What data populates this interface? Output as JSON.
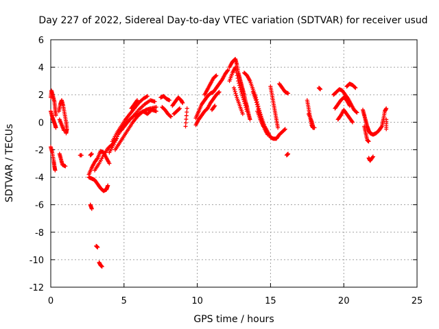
{
  "chart_data": {
    "type": "scatter",
    "title": "Day 227 of 2022, Sidereal Day-to-day VTEC variation (SDTVAR) for receiver usud",
    "xlabel": "GPS time / hours",
    "ylabel": "SDTVAR / TECUs",
    "xlim": [
      0,
      25
    ],
    "ylim": [
      -12,
      6
    ],
    "xticks": [
      0,
      5,
      10,
      15,
      20,
      25
    ],
    "yticks": [
      -12,
      -10,
      -8,
      -6,
      -4,
      -2,
      0,
      2,
      4,
      6
    ],
    "grid": true,
    "marker": "+",
    "series": [
      {
        "name": "SDTVAR",
        "color": "#ff0000",
        "segments": [
          [
            [
              0.0,
              1.8
            ],
            [
              0.05,
              2.3
            ],
            [
              0.15,
              1.9
            ],
            [
              0.25,
              1.5
            ],
            [
              0.3,
              1.0
            ],
            [
              0.35,
              0.5
            ]
          ],
          [
            [
              0.0,
              0.8
            ],
            [
              0.1,
              0.4
            ],
            [
              0.2,
              0.1
            ],
            [
              0.3,
              -0.2
            ],
            [
              0.35,
              -0.4
            ]
          ],
          [
            [
              0.0,
              -1.8
            ],
            [
              0.1,
              -2.2
            ],
            [
              0.2,
              -2.8
            ],
            [
              0.25,
              -3.2
            ],
            [
              0.3,
              -3.5
            ]
          ],
          [
            [
              0.55,
              0.8
            ],
            [
              0.65,
              1.3
            ],
            [
              0.75,
              1.6
            ],
            [
              0.85,
              1.2
            ],
            [
              0.95,
              0.6
            ],
            [
              1.05,
              0.0
            ],
            [
              1.1,
              -0.5
            ],
            [
              1.05,
              -0.8
            ]
          ],
          [
            [
              0.6,
              0.2
            ],
            [
              0.75,
              -0.2
            ],
            [
              0.9,
              -0.6
            ]
          ],
          [
            [
              0.6,
              -2.3
            ],
            [
              0.7,
              -2.7
            ],
            [
              0.8,
              -3.1
            ],
            [
              1.0,
              -3.2
            ]
          ],
          [
            [
              2.0,
              -2.4
            ],
            [
              2.1,
              -2.4
            ]
          ],
          [
            [
              2.6,
              -4.0
            ],
            [
              2.8,
              -4.1
            ],
            [
              3.0,
              -4.2
            ],
            [
              3.2,
              -4.5
            ],
            [
              3.4,
              -4.8
            ],
            [
              3.6,
              -5.0
            ],
            [
              3.8,
              -4.9
            ],
            [
              3.9,
              -4.6
            ]
          ],
          [
            [
              2.6,
              -3.8
            ],
            [
              2.8,
              -3.3
            ],
            [
              3.0,
              -2.9
            ],
            [
              3.2,
              -2.6
            ],
            [
              3.4,
              -2.1
            ],
            [
              3.6,
              -2.2
            ],
            [
              3.8,
              -2.6
            ],
            [
              4.0,
              -3.0
            ]
          ],
          [
            [
              2.7,
              -2.4
            ],
            [
              2.8,
              -2.3
            ]
          ],
          [
            [
              3.0,
              -3.5
            ],
            [
              3.3,
              -3.0
            ],
            [
              3.6,
              -2.4
            ],
            [
              3.9,
              -1.9
            ],
            [
              4.2,
              -1.6
            ],
            [
              4.5,
              -1.2
            ]
          ],
          [
            [
              2.7,
              -6.0
            ],
            [
              2.8,
              -6.3
            ]
          ],
          [
            [
              3.1,
              -9.0
            ],
            [
              3.2,
              -9.1
            ]
          ],
          [
            [
              3.3,
              -10.2
            ],
            [
              3.4,
              -10.4
            ],
            [
              3.5,
              -10.5
            ]
          ],
          [
            [
              4.0,
              -2.2
            ],
            [
              4.3,
              -1.6
            ],
            [
              4.6,
              -0.9
            ],
            [
              4.9,
              -0.4
            ],
            [
              5.2,
              0.0
            ],
            [
              5.6,
              0.4
            ],
            [
              6.0,
              0.9
            ],
            [
              6.4,
              1.3
            ],
            [
              6.8,
              1.6
            ],
            [
              7.1,
              1.5
            ]
          ],
          [
            [
              4.2,
              -1.4
            ],
            [
              4.5,
              -0.8
            ],
            [
              4.8,
              -0.3
            ],
            [
              5.1,
              0.2
            ],
            [
              5.4,
              0.6
            ],
            [
              5.7,
              1.0
            ],
            [
              6.0,
              1.4
            ],
            [
              6.3,
              1.7
            ],
            [
              6.6,
              1.9
            ]
          ],
          [
            [
              4.4,
              -2.0
            ],
            [
              4.7,
              -1.5
            ],
            [
              5.0,
              -1.0
            ],
            [
              5.3,
              -0.5
            ],
            [
              5.6,
              0.0
            ],
            [
              5.9,
              0.4
            ],
            [
              6.2,
              0.7
            ],
            [
              6.5,
              0.9
            ],
            [
              6.8,
              1.0
            ],
            [
              7.2,
              1.1
            ]
          ],
          [
            [
              4.8,
              -0.6
            ],
            [
              5.1,
              -0.2
            ],
            [
              5.4,
              0.2
            ],
            [
              5.7,
              0.5
            ],
            [
              6.0,
              0.6
            ],
            [
              6.3,
              0.8
            ],
            [
              6.6,
              0.6
            ],
            [
              6.9,
              0.9
            ],
            [
              7.2,
              0.8
            ]
          ],
          [
            [
              5.5,
              1.0
            ],
            [
              5.7,
              1.3
            ],
            [
              5.9,
              1.6
            ]
          ],
          [
            [
              7.5,
              1.8
            ],
            [
              7.7,
              1.9
            ],
            [
              7.9,
              1.7
            ],
            [
              8.1,
              1.6
            ]
          ],
          [
            [
              7.6,
              1.1
            ],
            [
              7.8,
              0.9
            ],
            [
              8.0,
              0.6
            ],
            [
              8.2,
              0.4
            ]
          ],
          [
            [
              8.3,
              1.2
            ],
            [
              8.5,
              1.5
            ],
            [
              8.7,
              1.8
            ],
            [
              8.9,
              1.6
            ],
            [
              9.0,
              1.4
            ]
          ],
          [
            [
              8.4,
              0.6
            ],
            [
              8.6,
              0.8
            ],
            [
              8.8,
              1.0
            ]
          ],
          [
            [
              9.2,
              -0.3
            ],
            [
              9.3,
              1.0
            ]
          ],
          [
            [
              9.9,
              0.3
            ],
            [
              10.1,
              0.8
            ],
            [
              10.3,
              1.3
            ],
            [
              10.5,
              1.6
            ],
            [
              10.7,
              1.9
            ],
            [
              10.9,
              2.1
            ],
            [
              11.1,
              2.2
            ],
            [
              11.3,
              2.5
            ],
            [
              11.5,
              2.8
            ],
            [
              11.7,
              3.1
            ],
            [
              11.9,
              3.5
            ],
            [
              12.1,
              3.8
            ]
          ],
          [
            [
              9.9,
              -0.2
            ],
            [
              10.1,
              0.2
            ],
            [
              10.3,
              0.5
            ],
            [
              10.5,
              0.8
            ],
            [
              10.7,
              1.0
            ],
            [
              10.9,
              1.4
            ],
            [
              11.1,
              1.7
            ],
            [
              11.3,
              2.0
            ],
            [
              11.5,
              2.2
            ]
          ],
          [
            [
              10.5,
              2.0
            ],
            [
              10.7,
              2.4
            ],
            [
              10.9,
              2.8
            ],
            [
              11.1,
              3.2
            ],
            [
              11.3,
              3.4
            ]
          ],
          [
            [
              11.0,
              0.9
            ],
            [
              11.2,
              1.2
            ]
          ],
          [
            [
              12.2,
              4.0
            ],
            [
              12.4,
              4.4
            ],
            [
              12.6,
              4.6
            ],
            [
              12.7,
              4.2
            ],
            [
              12.8,
              3.6
            ],
            [
              12.9,
              3.2
            ],
            [
              13.0,
              2.8
            ],
            [
              13.1,
              2.4
            ],
            [
              13.2,
              2.0
            ],
            [
              13.3,
              1.5
            ],
            [
              13.4,
              1.1
            ],
            [
              13.5,
              0.6
            ],
            [
              13.6,
              0.2
            ]
          ],
          [
            [
              12.2,
              3.0
            ],
            [
              12.4,
              3.6
            ],
            [
              12.6,
              4.0
            ],
            [
              12.8,
              3.0
            ],
            [
              13.0,
              2.2
            ],
            [
              13.2,
              1.5
            ],
            [
              13.4,
              0.8
            ]
          ],
          [
            [
              12.5,
              2.5
            ],
            [
              12.7,
              1.8
            ],
            [
              12.9,
              1.2
            ],
            [
              13.1,
              0.6
            ]
          ],
          [
            [
              13.2,
              3.6
            ],
            [
              13.4,
              3.4
            ],
            [
              13.6,
              3.0
            ],
            [
              13.8,
              2.4
            ],
            [
              14.0,
              1.8
            ],
            [
              14.2,
              1.0
            ],
            [
              14.4,
              0.3
            ],
            [
              14.6,
              -0.3
            ],
            [
              14.8,
              -0.7
            ],
            [
              15.0,
              -1.1
            ],
            [
              15.2,
              -1.2
            ],
            [
              15.4,
              -1.2
            ],
            [
              15.6,
              -0.9
            ],
            [
              15.8,
              -0.7
            ],
            [
              16.0,
              -0.5
            ]
          ],
          [
            [
              13.8,
              2.2
            ],
            [
              14.0,
              1.6
            ],
            [
              14.2,
              0.8
            ],
            [
              14.4,
              0.1
            ],
            [
              14.6,
              -0.5
            ],
            [
              14.8,
              -0.9
            ]
          ],
          [
            [
              14.1,
              0.8
            ],
            [
              14.3,
              0.2
            ],
            [
              14.5,
              -0.3
            ]
          ],
          [
            [
              15.0,
              2.6
            ],
            [
              15.1,
              2.0
            ],
            [
              15.2,
              1.4
            ],
            [
              15.3,
              0.8
            ],
            [
              15.4,
              0.2
            ],
            [
              15.5,
              -0.4
            ]
          ],
          [
            [
              15.6,
              2.8
            ],
            [
              15.8,
              2.5
            ],
            [
              16.0,
              2.2
            ],
            [
              16.2,
              2.1
            ]
          ],
          [
            [
              16.1,
              -2.4
            ],
            [
              16.2,
              -2.3
            ]
          ],
          [
            [
              17.5,
              1.6
            ],
            [
              17.6,
              1.0
            ],
            [
              17.7,
              0.4
            ],
            [
              17.8,
              -0.2
            ],
            [
              17.9,
              -0.4
            ],
            [
              18.0,
              -0.4
            ]
          ],
          [
            [
              17.6,
              0.6
            ],
            [
              17.8,
              0.1
            ],
            [
              17.9,
              -0.3
            ]
          ],
          [
            [
              18.3,
              2.5
            ],
            [
              18.4,
              2.4
            ]
          ],
          [
            [
              19.3,
              2.0
            ],
            [
              19.5,
              2.2
            ],
            [
              19.7,
              2.4
            ],
            [
              19.9,
              2.3
            ],
            [
              20.1,
              2.0
            ],
            [
              20.3,
              1.7
            ],
            [
              20.5,
              1.3
            ],
            [
              20.7,
              0.9
            ],
            [
              20.9,
              0.7
            ]
          ],
          [
            [
              19.4,
              1.0
            ],
            [
              19.6,
              1.3
            ],
            [
              19.8,
              1.6
            ],
            [
              20.0,
              1.8
            ],
            [
              20.2,
              1.6
            ],
            [
              20.4,
              1.2
            ]
          ],
          [
            [
              19.6,
              0.2
            ],
            [
              19.8,
              0.5
            ],
            [
              20.0,
              0.9
            ],
            [
              20.2,
              0.6
            ],
            [
              20.4,
              0.3
            ],
            [
              20.6,
              0.0
            ]
          ],
          [
            [
              20.2,
              2.6
            ],
            [
              20.4,
              2.8
            ],
            [
              20.6,
              2.7
            ],
            [
              20.8,
              2.5
            ]
          ],
          [
            [
              21.3,
              0.9
            ],
            [
              21.4,
              0.5
            ],
            [
              21.5,
              0.1
            ],
            [
              21.6,
              -0.3
            ],
            [
              21.7,
              -0.6
            ],
            [
              21.8,
              -0.8
            ],
            [
              22.0,
              -0.9
            ],
            [
              22.2,
              -0.8
            ],
            [
              22.4,
              -0.6
            ],
            [
              22.6,
              -0.3
            ],
            [
              22.7,
              0.2
            ],
            [
              22.8,
              0.8
            ],
            [
              22.9,
              1.0
            ]
          ],
          [
            [
              21.4,
              -0.3
            ],
            [
              21.5,
              -0.8
            ],
            [
              21.6,
              -1.3
            ],
            [
              21.7,
              -1.4
            ]
          ],
          [
            [
              21.7,
              -2.6
            ],
            [
              21.8,
              -2.8
            ],
            [
              22.0,
              -2.5
            ]
          ],
          [
            [
              22.9,
              -0.5
            ],
            [
              22.9,
              0.2
            ]
          ]
        ]
      }
    ]
  }
}
